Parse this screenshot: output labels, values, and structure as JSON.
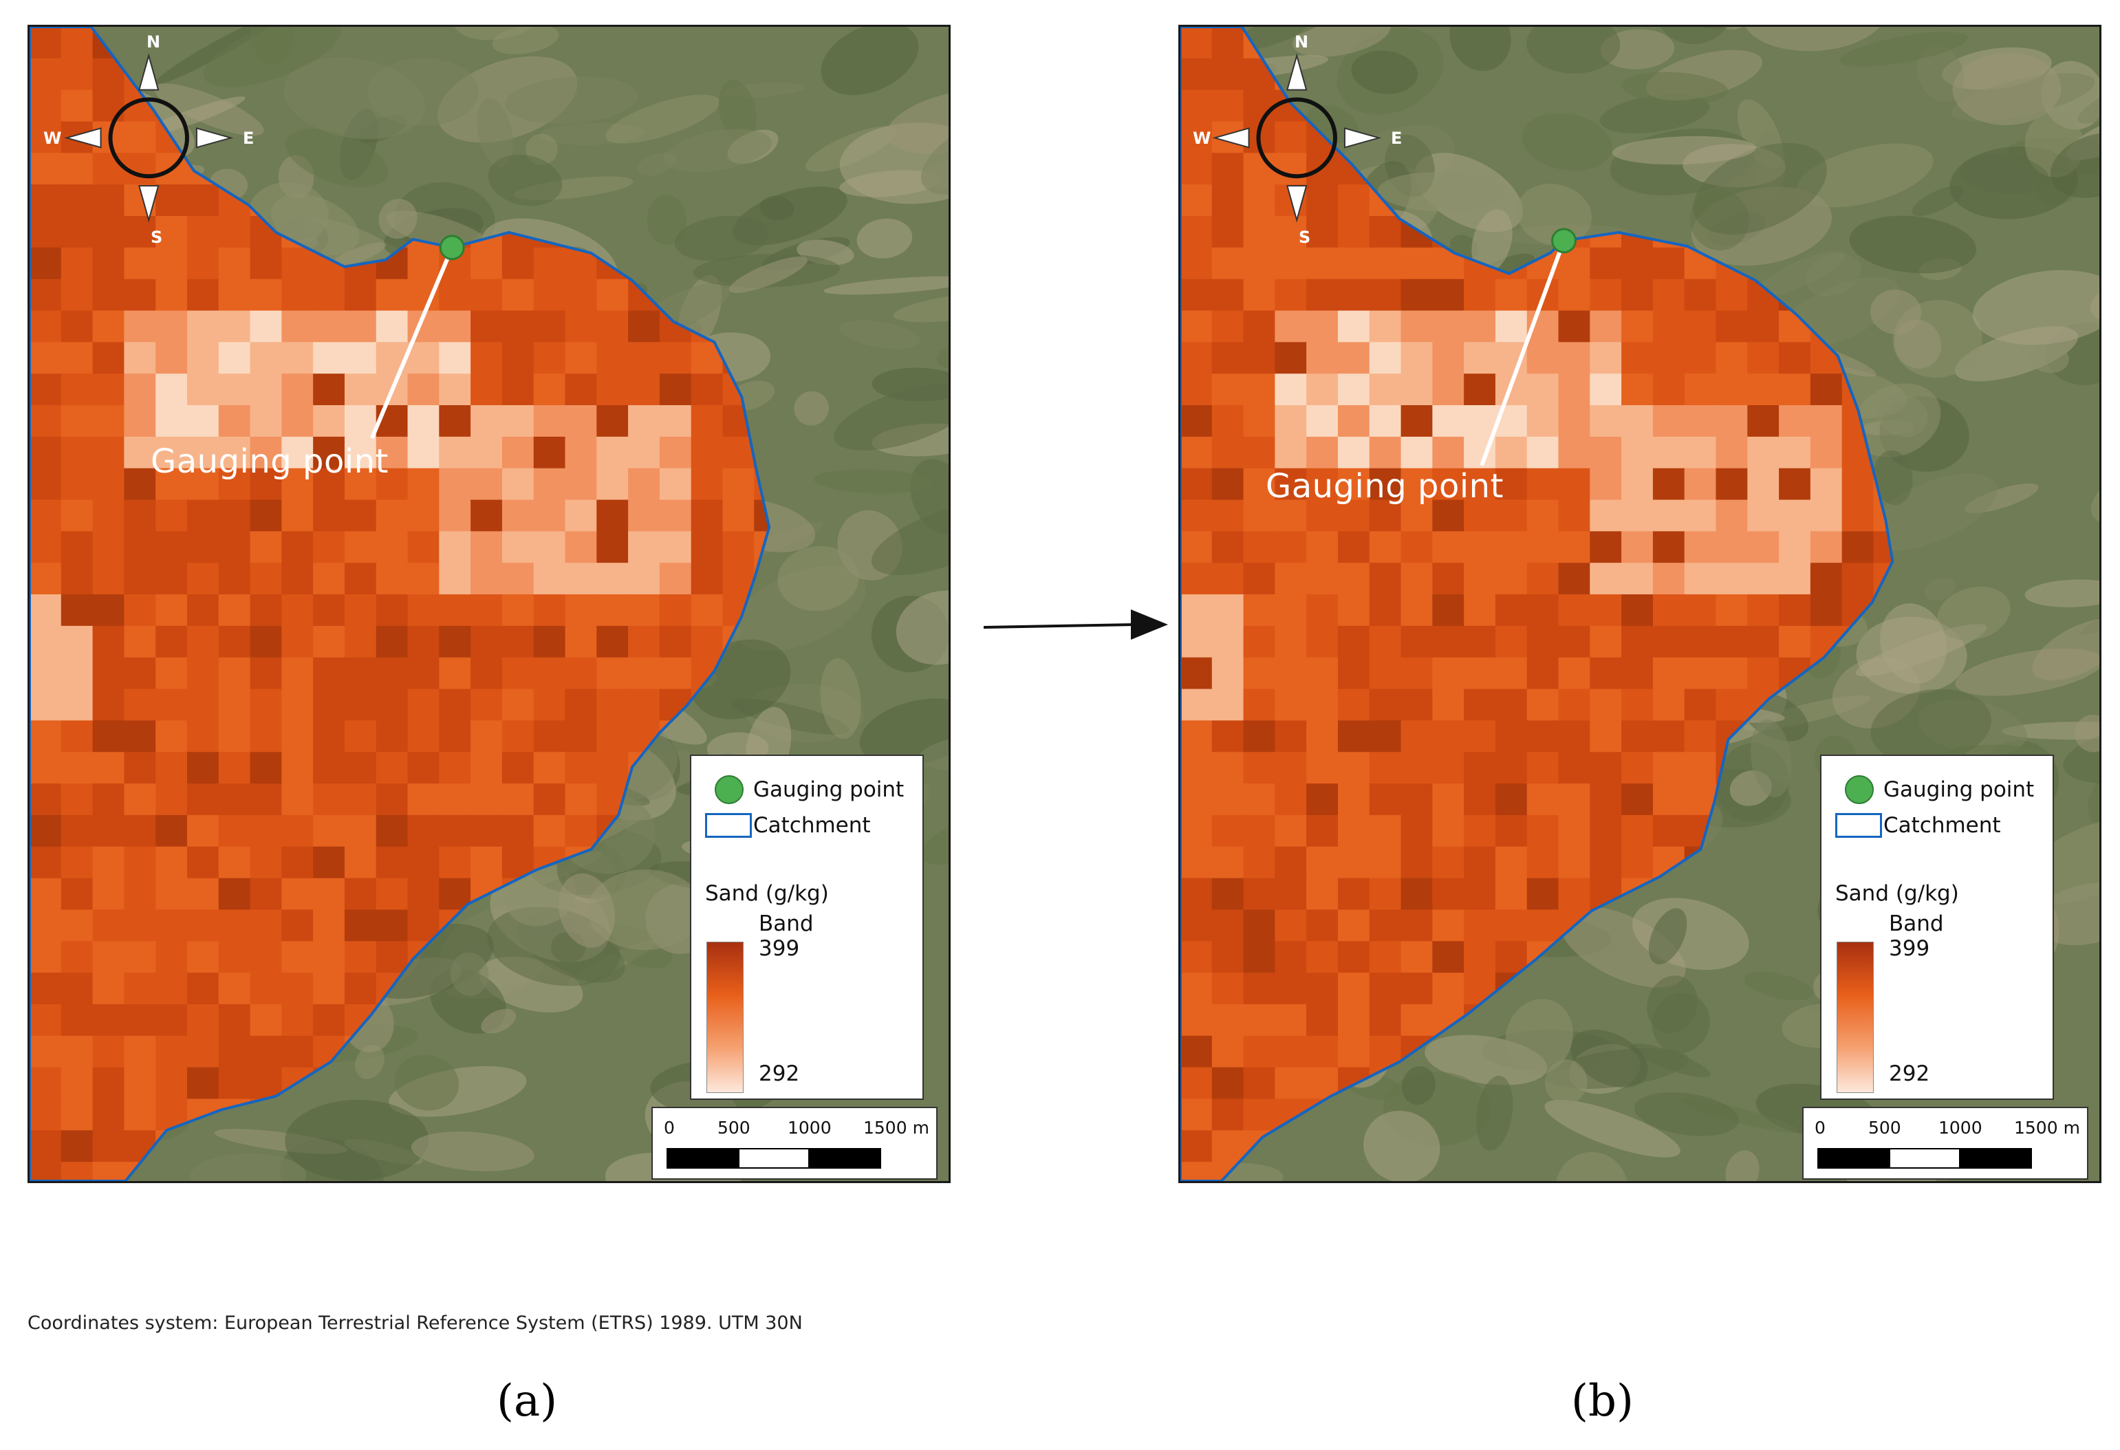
{
  "panels": [
    {
      "id": "a",
      "label": "(a)",
      "annotation": "Gauging point",
      "compass": {
        "n": "N",
        "s": "S",
        "e": "E",
        "w": "W"
      },
      "legend": {
        "point_label": "Gauging point",
        "catchment_label": "Catchment",
        "raster_title": "Sand (g/kg)",
        "band_label": "Band",
        "max": "399",
        "min": "292"
      },
      "scalebar": {
        "ticks": [
          "0",
          "500",
          "1000",
          "1500 m"
        ]
      }
    },
    {
      "id": "b",
      "label": "(b)",
      "annotation": "Gauging point",
      "compass": {
        "n": "N",
        "s": "S",
        "e": "E",
        "w": "W"
      },
      "legend": {
        "point_label": "Gauging point",
        "catchment_label": "Catchment",
        "raster_title": "Sand (g/kg)",
        "band_label": "Band",
        "max": "399",
        "min": "292"
      },
      "scalebar": {
        "ticks": [
          "0",
          "500",
          "1000",
          "1500 m"
        ]
      }
    }
  ],
  "caption": "Coordinates system: European Terrestrial Reference System (ETRS) 1989. UTM 30N",
  "colors": {
    "raster_high": "#a83010",
    "raster_mid": "#e85f1a",
    "raster_low": "#fde8dc",
    "catchment": "#1565c0",
    "gauging_point": "#4caf50",
    "satellite_base": "#6d7a52"
  }
}
